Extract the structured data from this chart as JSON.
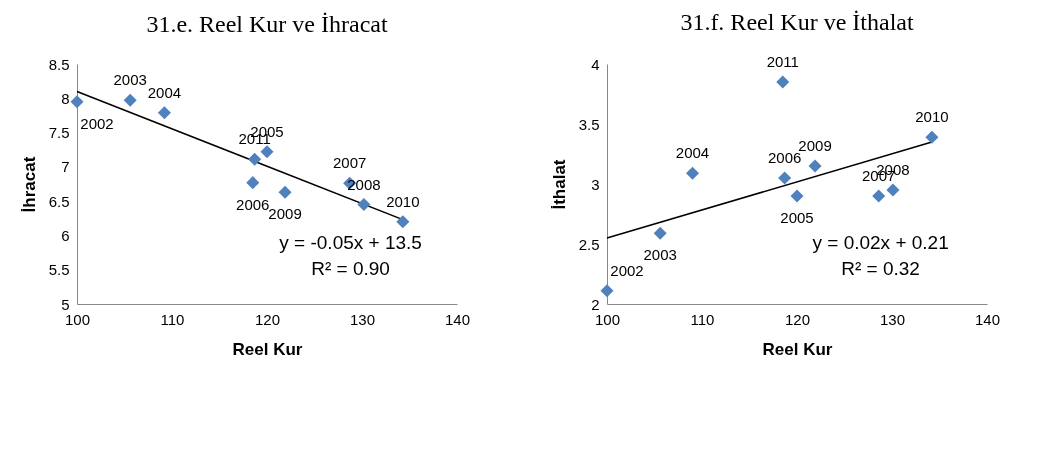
{
  "chart_data": [
    {
      "type": "scatter",
      "title": "31.e. Reel Kur ve İhracat",
      "xlabel": "Reel Kur",
      "ylabel": "İhracat",
      "xlim": [
        100,
        140
      ],
      "xticks": [
        100,
        110,
        120,
        130,
        140
      ],
      "ylim": [
        5,
        8.5
      ],
      "yticks": [
        5,
        5.5,
        6,
        6.5,
        7,
        7.5,
        8,
        8.5
      ],
      "grid": false,
      "series": [
        {
          "color": "#4f81bd",
          "marker": "diamond",
          "x": [
            100,
            105.6,
            109.2,
            120.0,
            118.5,
            128.7,
            130.2,
            121.9,
            134.3,
            118.7
          ],
          "values": [
            7.95,
            7.97,
            7.79,
            7.22,
            6.77,
            6.76,
            6.45,
            6.63,
            6.2,
            7.11
          ]
        },
        {
          "type": "line",
          "color": "#000000",
          "marker": "none",
          "x": [
            100,
            134.3
          ],
          "values": [
            8.1,
            6.23
          ]
        }
      ],
      "annotations": [
        {
          "text": "2002",
          "x": 100,
          "y": 7.95
        },
        {
          "text": "2003",
          "x": 105.6,
          "y": 7.97
        },
        {
          "text": "2004",
          "x": 109.2,
          "y": 7.79
        },
        {
          "text": "2005",
          "x": 120.0,
          "y": 7.22
        },
        {
          "text": "2006",
          "x": 118.5,
          "y": 6.77
        },
        {
          "text": "2007",
          "x": 128.7,
          "y": 6.76
        },
        {
          "text": "2008",
          "x": 130.2,
          "y": 6.45
        },
        {
          "text": "2009",
          "x": 121.9,
          "y": 6.63
        },
        {
          "text": "2010",
          "x": 134.3,
          "y": 6.2
        },
        {
          "text": "2011",
          "x": 118.7,
          "y": 7.11
        },
        "y = -0.05x + 13.5",
        "R² = 0.90"
      ]
    },
    {
      "type": "scatter",
      "title": "31.f. Reel Kur ve İthalat",
      "xlabel": "Reel Kur",
      "ylabel": "İthalat",
      "xlim": [
        100,
        140
      ],
      "xticks": [
        100,
        110,
        120,
        130,
        140
      ],
      "ylim": [
        2,
        4
      ],
      "yticks": [
        2,
        2.5,
        3,
        3.5,
        4
      ],
      "grid": false,
      "series": [
        {
          "color": "#4f81bd",
          "marker": "diamond",
          "x": [
            100,
            105.6,
            109.0,
            120.0,
            118.7,
            128.6,
            130.1,
            121.9,
            134.2,
            118.5
          ],
          "values": [
            2.11,
            2.59,
            3.09,
            2.9,
            3.05,
            2.9,
            2.95,
            3.15,
            3.39,
            3.85
          ]
        },
        {
          "type": "line",
          "color": "#000000",
          "marker": "none",
          "x": [
            100,
            134.2
          ],
          "values": [
            2.55,
            3.35
          ]
        }
      ],
      "annotations": [
        {
          "text": "2002",
          "x": 100,
          "y": 2.11
        },
        {
          "text": "2003",
          "x": 105.6,
          "y": 2.59
        },
        {
          "text": "2004",
          "x": 109.0,
          "y": 3.09
        },
        {
          "text": "2005",
          "x": 120.0,
          "y": 2.9
        },
        {
          "text": "2006",
          "x": 118.7,
          "y": 3.05
        },
        {
          "text": "2007",
          "x": 128.6,
          "y": 2.9
        },
        {
          "text": "2008",
          "x": 130.1,
          "y": 2.95
        },
        {
          "text": "2009",
          "x": 121.9,
          "y": 3.15
        },
        {
          "text": "2010",
          "x": 134.2,
          "y": 3.39
        },
        {
          "text": "2011",
          "x": 118.5,
          "y": 3.85
        },
        "y = 0.02x + 0.21",
        "R² = 0.32"
      ]
    }
  ]
}
